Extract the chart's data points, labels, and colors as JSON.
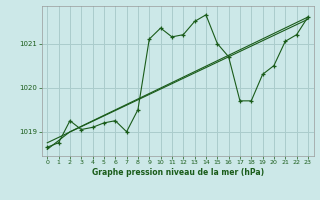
{
  "title": "Graphe pression niveau de la mer (hPa)",
  "bg_color": "#cce8e8",
  "grid_color": "#aacccc",
  "line_color": "#1a5c1a",
  "xlim": [
    -0.5,
    23.5
  ],
  "ylim": [
    1018.45,
    1021.85
  ],
  "yticks": [
    1019,
    1020,
    1021
  ],
  "xticks": [
    0,
    1,
    2,
    3,
    4,
    5,
    6,
    7,
    8,
    9,
    10,
    11,
    12,
    13,
    14,
    15,
    16,
    17,
    18,
    19,
    20,
    21,
    22,
    23
  ],
  "series": [
    {
      "x": [
        0,
        1,
        2,
        3,
        4,
        5,
        6,
        7,
        8,
        9,
        10,
        11,
        12,
        13,
        14,
        15,
        16,
        17,
        18,
        19,
        20,
        21,
        22,
        23
      ],
      "y": [
        1018.65,
        1018.75,
        1019.25,
        1019.05,
        1019.1,
        1019.2,
        1019.25,
        1019.0,
        1019.5,
        1021.1,
        1021.35,
        1021.15,
        1021.2,
        1021.5,
        1021.65,
        1021.0,
        1020.7,
        1019.7,
        1019.7,
        1020.3,
        1020.5,
        1021.05,
        1021.2,
        1021.6
      ]
    },
    {
      "x": [
        0,
        2,
        23
      ],
      "y": [
        1018.6,
        1019.0,
        1021.6
      ]
    },
    {
      "x": [
        0,
        23
      ],
      "y": [
        1018.75,
        1021.55
      ]
    }
  ]
}
